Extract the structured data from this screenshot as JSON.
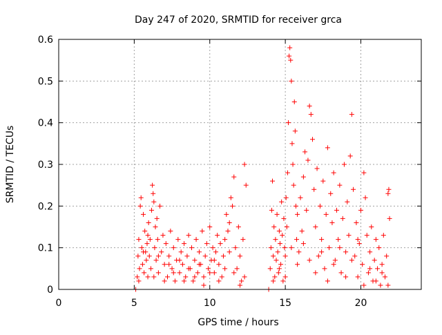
{
  "chart_data": {
    "type": "scatter",
    "title": "Day 247 of 2020, SRMTID for receiver grca",
    "xlabel": "GPS time / hours",
    "ylabel": "SRMTID / TECUs",
    "xlim": [
      0,
      24
    ],
    "ylim": [
      0,
      0.6
    ],
    "x_ticks": [
      0,
      5,
      10,
      15,
      20
    ],
    "x_tick_labels": [
      "0",
      "5",
      "10",
      "15",
      "20"
    ],
    "y_ticks": [
      0,
      0.1,
      0.2,
      0.3,
      0.4,
      0.5,
      0.6
    ],
    "y_tick_labels": [
      "0",
      "0.1",
      "0.2",
      "0.3",
      "0.4",
      "0.5",
      "0.6"
    ],
    "grid": true,
    "marker": "plus",
    "colors": {
      "series": "#ff0000",
      "grid": "#a0a0a0",
      "frame": "#000000"
    },
    "series": [
      {
        "name": "SRMTID",
        "points": [
          [
            5.1,
            0.0
          ],
          [
            5.2,
            0.03
          ],
          [
            5.25,
            0.08
          ],
          [
            5.3,
            0.12
          ],
          [
            5.35,
            0.05
          ],
          [
            5.4,
            0.2
          ],
          [
            5.45,
            0.22
          ],
          [
            5.5,
            0.1
          ],
          [
            5.55,
            0.06
          ],
          [
            5.6,
            0.18
          ],
          [
            5.65,
            0.04
          ],
          [
            5.7,
            0.14
          ],
          [
            5.75,
            0.09
          ],
          [
            5.8,
            0.07
          ],
          [
            5.85,
            0.11
          ],
          [
            5.9,
            0.03
          ],
          [
            5.95,
            0.16
          ],
          [
            6.0,
            0.08
          ],
          [
            6.05,
            0.12
          ],
          [
            6.1,
            0.05
          ],
          [
            6.15,
            0.19
          ],
          [
            6.2,
            0.25
          ],
          [
            6.25,
            0.23
          ],
          [
            6.3,
            0.21
          ],
          [
            6.35,
            0.1
          ],
          [
            6.4,
            0.15
          ],
          [
            6.45,
            0.07
          ],
          [
            6.5,
            0.17
          ],
          [
            6.55,
            0.12
          ],
          [
            6.6,
            0.04
          ],
          [
            6.7,
            0.2
          ],
          [
            6.8,
            0.09
          ],
          [
            6.9,
            0.13
          ],
          [
            7.0,
            0.06
          ],
          [
            7.1,
            0.11
          ],
          [
            7.2,
            0.03
          ],
          [
            7.3,
            0.08
          ],
          [
            7.4,
            0.14
          ],
          [
            7.5,
            0.05
          ],
          [
            7.6,
            0.1
          ],
          [
            7.7,
            0.02
          ],
          [
            7.8,
            0.07
          ],
          [
            7.9,
            0.12
          ],
          [
            8.0,
            0.04
          ],
          [
            8.1,
            0.09
          ],
          [
            8.2,
            0.06
          ],
          [
            8.3,
            0.11
          ],
          [
            8.4,
            0.03
          ],
          [
            8.5,
            0.08
          ],
          [
            8.6,
            0.13
          ],
          [
            8.7,
            0.05
          ],
          [
            8.8,
            0.1
          ],
          [
            8.9,
            0.02
          ],
          [
            9.0,
            0.07
          ],
          [
            9.1,
            0.12
          ],
          [
            9.2,
            0.04
          ],
          [
            9.3,
            0.09
          ],
          [
            9.4,
            0.06
          ],
          [
            9.5,
            0.14
          ],
          [
            9.6,
            0.03
          ],
          [
            9.7,
            0.08
          ],
          [
            9.8,
            0.11
          ],
          [
            9.9,
            0.05
          ],
          [
            10.0,
            0.15
          ],
          [
            10.1,
            0.07
          ],
          [
            10.2,
            0.1
          ],
          [
            10.3,
            0.04
          ],
          [
            10.4,
            0.09
          ],
          [
            10.5,
            0.13
          ],
          [
            10.6,
            0.06
          ],
          [
            10.7,
            0.11
          ],
          [
            10.8,
            0.03
          ],
          [
            10.9,
            0.08
          ],
          [
            11.0,
            0.12
          ],
          [
            11.1,
            0.18
          ],
          [
            11.2,
            0.14
          ],
          [
            11.3,
            0.16
          ],
          [
            11.4,
            0.22
          ],
          [
            11.5,
            0.2
          ],
          [
            11.6,
            0.27
          ],
          [
            11.7,
            0.1
          ],
          [
            11.8,
            0.05
          ],
          [
            11.9,
            0.15
          ],
          [
            12.0,
            0.08
          ],
          [
            12.1,
            0.02
          ],
          [
            12.2,
            0.12
          ],
          [
            12.3,
            0.3
          ],
          [
            12.4,
            0.25
          ],
          [
            5.3,
            0.02
          ],
          [
            5.6,
            0.09
          ],
          [
            5.9,
            0.13
          ],
          [
            6.3,
            0.03
          ],
          [
            6.6,
            0.08
          ],
          [
            7.0,
            0.02
          ],
          [
            7.3,
            0.06
          ],
          [
            7.6,
            0.04
          ],
          [
            8.0,
            0.07
          ],
          [
            8.3,
            0.02
          ],
          [
            8.6,
            0.05
          ],
          [
            9.0,
            0.03
          ],
          [
            9.3,
            0.06
          ],
          [
            9.6,
            0.01
          ],
          [
            10.0,
            0.04
          ],
          [
            10.3,
            0.07
          ],
          [
            10.6,
            0.02
          ],
          [
            11.0,
            0.05
          ],
          [
            11.3,
            0.09
          ],
          [
            11.6,
            0.04
          ],
          [
            12.0,
            0.01
          ],
          [
            12.3,
            0.03
          ],
          [
            13.9,
            0.0
          ],
          [
            14.0,
            0.05
          ],
          [
            14.05,
            0.1
          ],
          [
            14.1,
            0.19
          ],
          [
            14.15,
            0.26
          ],
          [
            14.2,
            0.08
          ],
          [
            14.25,
            0.15
          ],
          [
            14.3,
            0.03
          ],
          [
            14.35,
            0.12
          ],
          [
            14.4,
            0.07
          ],
          [
            14.45,
            0.18
          ],
          [
            14.5,
            0.09
          ],
          [
            14.55,
            0.04
          ],
          [
            14.6,
            0.14
          ],
          [
            14.65,
            0.11
          ],
          [
            14.7,
            0.06
          ],
          [
            14.75,
            0.21
          ],
          [
            14.8,
            0.13
          ],
          [
            14.85,
            0.02
          ],
          [
            14.9,
            0.17
          ],
          [
            14.95,
            0.1
          ],
          [
            15.0,
            0.08
          ],
          [
            15.05,
            0.22
          ],
          [
            15.1,
            0.15
          ],
          [
            15.15,
            0.28
          ],
          [
            15.2,
            0.4
          ],
          [
            15.25,
            0.56
          ],
          [
            15.3,
            0.58
          ],
          [
            15.35,
            0.55
          ],
          [
            15.4,
            0.5
          ],
          [
            15.45,
            0.35
          ],
          [
            15.5,
            0.3
          ],
          [
            15.55,
            0.25
          ],
          [
            15.6,
            0.45
          ],
          [
            15.65,
            0.38
          ],
          [
            15.7,
            0.2
          ],
          [
            15.75,
            0.12
          ],
          [
            15.8,
            0.18
          ],
          [
            15.9,
            0.09
          ],
          [
            16.0,
            0.22
          ],
          [
            16.1,
            0.14
          ],
          [
            16.2,
            0.27
          ],
          [
            16.3,
            0.33
          ],
          [
            16.4,
            0.19
          ],
          [
            16.5,
            0.31
          ],
          [
            16.6,
            0.44
          ],
          [
            16.7,
            0.42
          ],
          [
            16.8,
            0.36
          ],
          [
            16.9,
            0.24
          ],
          [
            17.0,
            0.15
          ],
          [
            17.1,
            0.29
          ],
          [
            17.2,
            0.08
          ],
          [
            17.3,
            0.2
          ],
          [
            17.4,
            0.12
          ],
          [
            17.5,
            0.26
          ],
          [
            17.6,
            0.05
          ],
          [
            17.7,
            0.18
          ],
          [
            17.8,
            0.34
          ],
          [
            17.9,
            0.1
          ],
          [
            18.0,
            0.23
          ],
          [
            18.1,
            0.16
          ],
          [
            18.2,
            0.28
          ],
          [
            18.3,
            0.07
          ],
          [
            18.4,
            0.19
          ],
          [
            18.5,
            0.12
          ],
          [
            18.6,
            0.25
          ],
          [
            18.7,
            0.04
          ],
          [
            18.8,
            0.17
          ],
          [
            18.9,
            0.3
          ],
          [
            19.0,
            0.09
          ],
          [
            19.1,
            0.21
          ],
          [
            19.2,
            0.13
          ],
          [
            19.3,
            0.32
          ],
          [
            19.4,
            0.42
          ],
          [
            19.5,
            0.24
          ],
          [
            19.6,
            0.08
          ],
          [
            19.7,
            0.16
          ],
          [
            19.8,
            0.03
          ],
          [
            19.9,
            0.11
          ],
          [
            20.0,
            0.19
          ],
          [
            20.1,
            0.06
          ],
          [
            20.2,
            0.28
          ],
          [
            20.3,
            0.22
          ],
          [
            20.4,
            0.13
          ],
          [
            20.5,
            0.04
          ],
          [
            20.6,
            0.09
          ],
          [
            20.7,
            0.15
          ],
          [
            20.8,
            0.02
          ],
          [
            20.9,
            0.07
          ],
          [
            21.0,
            0.12
          ],
          [
            21.1,
            0.05
          ],
          [
            21.2,
            0.1
          ],
          [
            21.3,
            0.01
          ],
          [
            21.4,
            0.06
          ],
          [
            21.5,
            0.13
          ],
          [
            21.6,
            0.03
          ],
          [
            21.7,
            0.08
          ],
          [
            21.8,
            0.23
          ],
          [
            21.85,
            0.24
          ],
          [
            21.9,
            0.17
          ],
          [
            14.2,
            0.02
          ],
          [
            14.6,
            0.05
          ],
          [
            15.0,
            0.03
          ],
          [
            15.4,
            0.1
          ],
          [
            15.8,
            0.06
          ],
          [
            16.2,
            0.11
          ],
          [
            16.6,
            0.07
          ],
          [
            17.0,
            0.04
          ],
          [
            17.4,
            0.09
          ],
          [
            17.8,
            0.02
          ],
          [
            18.2,
            0.06
          ],
          [
            18.6,
            0.1
          ],
          [
            19.0,
            0.03
          ],
          [
            19.4,
            0.07
          ],
          [
            19.8,
            0.12
          ],
          [
            20.2,
            0.01
          ],
          [
            20.6,
            0.05
          ],
          [
            21.0,
            0.02
          ],
          [
            21.4,
            0.04
          ],
          [
            21.8,
            0.01
          ]
        ]
      }
    ]
  }
}
